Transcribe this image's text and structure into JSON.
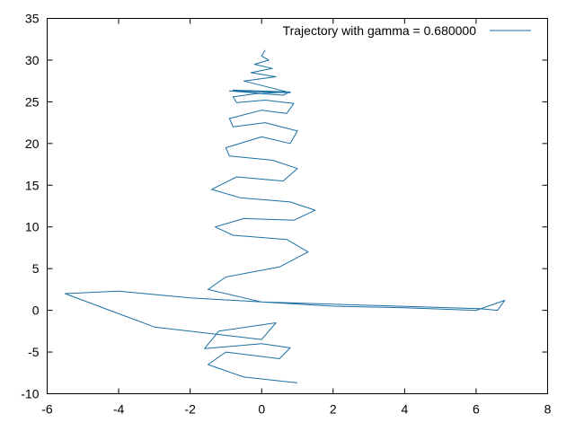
{
  "chart_data": {
    "type": "line",
    "title": "",
    "xlabel": "",
    "ylabel": "",
    "xlim": [
      -6,
      8
    ],
    "ylim": [
      -10,
      35
    ],
    "grid": false,
    "legend_position": "top-right",
    "x_ticks": [
      -6,
      -4,
      -2,
      0,
      2,
      4,
      6,
      8
    ],
    "y_ticks": [
      -10,
      -5,
      0,
      5,
      10,
      15,
      20,
      25,
      30,
      35
    ],
    "x_tick_labels": [
      "-6",
      "-4",
      "-2",
      "0",
      "2",
      "4",
      "6",
      "8"
    ],
    "y_tick_labels": [
      "-10",
      "-5",
      "0",
      "5",
      "10",
      "15",
      "20",
      "25",
      "30",
      "35"
    ],
    "series": [
      {
        "name": "Trajectory with gamma = 0.680000",
        "color": "#1a6fa3",
        "x": [
          1.0,
          -0.5,
          -1.5,
          -1.0,
          0.5,
          0.8,
          0.0,
          -1.6,
          -1.2,
          0.4,
          0.0,
          -3.0,
          -5.5,
          -4.0,
          -2.0,
          0.0,
          2.0,
          4.0,
          6.0,
          6.8,
          6.6,
          6.1,
          3.0,
          0.0,
          -1.5,
          -1.0,
          0.5,
          1.3,
          0.7,
          -0.8,
          -1.3,
          -0.5,
          0.9,
          1.5,
          0.8,
          -0.6,
          -1.4,
          -0.7,
          0.6,
          1.0,
          0.3,
          -0.9,
          -1.0,
          0.0,
          0.8,
          1.0,
          0.1,
          -0.8,
          -0.9,
          0.0,
          0.7,
          0.9,
          0.1,
          -0.7,
          -0.8,
          -0.1,
          0.6,
          0.8,
          0.0,
          -0.9,
          0.8,
          -0.8,
          0.7,
          -0.5,
          0.4,
          -0.3,
          0.3,
          -0.2,
          0.2,
          0.0,
          0.1
        ],
        "y": [
          -8.7,
          -8.0,
          -6.5,
          -5.0,
          -5.8,
          -4.5,
          -4.0,
          -4.6,
          -2.5,
          -1.5,
          -3.5,
          -2.0,
          2.0,
          2.3,
          1.5,
          1.0,
          0.5,
          0.3,
          0.0,
          1.2,
          0.0,
          0.2,
          0.6,
          1.0,
          2.5,
          4.0,
          5.2,
          7.0,
          8.5,
          9.0,
          10.0,
          11.0,
          10.8,
          12.0,
          13.0,
          13.5,
          14.5,
          16.0,
          15.5,
          17.0,
          18.0,
          18.5,
          19.5,
          20.8,
          20.0,
          21.5,
          22.5,
          22.0,
          23.0,
          24.0,
          23.6,
          24.8,
          25.2,
          24.9,
          25.6,
          26.0,
          25.8,
          26.2,
          26.0,
          26.3,
          26.1,
          26.4,
          26.2,
          27.5,
          28.0,
          28.5,
          29.0,
          29.5,
          30.0,
          30.5,
          31.2
        ]
      }
    ]
  }
}
